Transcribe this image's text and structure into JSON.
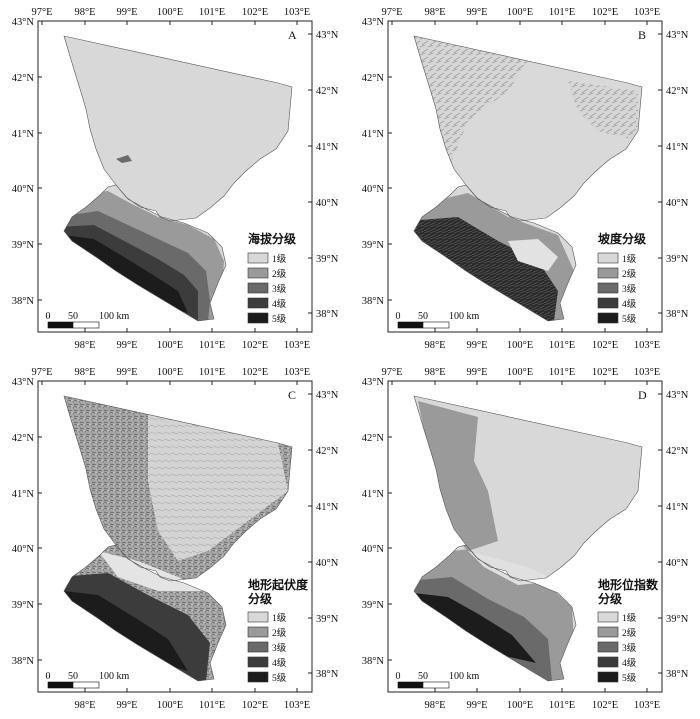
{
  "colors": {
    "class1": "#d8d8d8",
    "class2": "#9a9a9a",
    "class3": "#6a6a6a",
    "class4": "#3c3c3c",
    "class5": "#1c1c1c",
    "frame": "#222222"
  },
  "axes": {
    "top_ticks": [
      "97°E",
      "98°E",
      "99°E",
      "100°E",
      "101°E",
      "102°E",
      "103°E"
    ],
    "bottom_ticks": [
      "98°E",
      "99°E",
      "100°E",
      "101°E",
      "102°E",
      "103°E"
    ],
    "left_ticks": [
      "43°N",
      "42°N",
      "41°N",
      "40°N",
      "39°N",
      "38°N"
    ],
    "right_ticks": [
      "43°N",
      "42°N",
      "41°N",
      "40°N",
      "39°N",
      "38°N"
    ]
  },
  "scale_bar": {
    "labels": [
      "0",
      "50",
      "100 km"
    ]
  },
  "legend_classes": [
    "1级",
    "2级",
    "3级",
    "4级",
    "5级"
  ],
  "panels": [
    {
      "letter": "A",
      "legend_title": [
        "海拔分级"
      ],
      "style": "elevation"
    },
    {
      "letter": "B",
      "legend_title": [
        "坡度分级"
      ],
      "style": "slope"
    },
    {
      "letter": "C",
      "legend_title": [
        "地形起伏度",
        "分级"
      ],
      "style": "relief"
    },
    {
      "letter": "D",
      "legend_title": [
        "地形位指数",
        "分级"
      ],
      "style": "terrain"
    }
  ]
}
